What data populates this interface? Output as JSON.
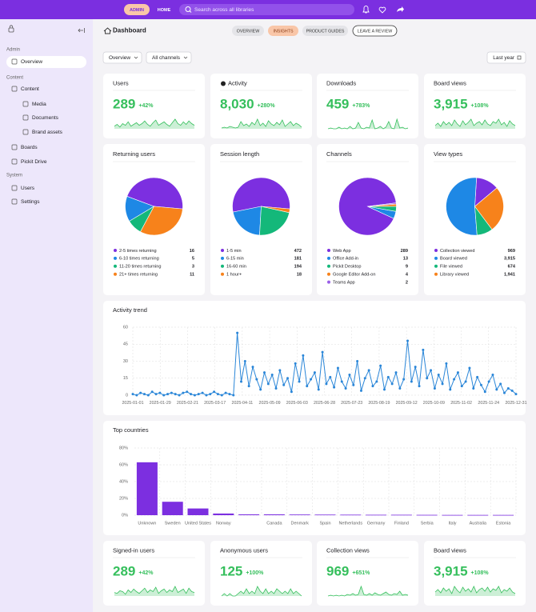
{
  "topbar": {
    "admin": "ADMIN",
    "home": "HOME",
    "search": "Search across all libraries"
  },
  "sidebar": [
    {
      "heading": "Admin",
      "items": [
        "Overview"
      ]
    },
    {
      "heading": "Content",
      "items": [
        "Content",
        "Media",
        "Documents",
        "Brand assets",
        "Boards",
        "Pickit Drive"
      ]
    },
    {
      "heading": "System",
      "items": [
        "Users",
        "Settings"
      ]
    }
  ],
  "header": {
    "title": "Dashboard",
    "tabs": [
      "OVERVIEW",
      "INSIGHTS",
      "PRODUCT GUIDES",
      "LEAVE A REVIEW"
    ]
  },
  "filters": [
    "Overview",
    "All channels"
  ],
  "period": "Last year",
  "stats": [
    {
      "title": "Users",
      "value": 289,
      "change": 42,
      "change_label": "+42%",
      "trend": [
        3,
        5,
        2,
        6,
        4,
        8,
        3,
        5,
        7,
        4,
        6,
        9,
        5,
        3,
        7,
        10,
        4,
        6,
        8,
        5,
        3,
        7,
        11,
        6,
        4,
        8,
        5,
        9,
        6,
        4
      ]
    },
    {
      "title": "Activity",
      "value": 8030,
      "value_label": "8,030",
      "change": 280,
      "change_label": "+280%",
      "trend": [
        1,
        2,
        1,
        3,
        2,
        1,
        2,
        9,
        4,
        6,
        3,
        8,
        5,
        12,
        4,
        7,
        3,
        10,
        6,
        4,
        8,
        5,
        11,
        3,
        6,
        9,
        4,
        7,
        5,
        2
      ]
    },
    {
      "title": "Downloads",
      "value": 459,
      "value_label": "459",
      "change": 783,
      "change_label": "+783%",
      "trend": [
        0,
        1,
        0,
        0,
        2,
        0,
        1,
        0,
        3,
        0,
        1,
        8,
        1,
        0,
        2,
        1,
        11,
        0,
        1,
        3,
        0,
        2,
        9,
        1,
        0,
        12,
        1,
        2,
        0,
        1
      ]
    },
    {
      "title": "Board views",
      "value": 3915,
      "value_label": "3,915",
      "change": 108,
      "change_label": "+108%",
      "trend": [
        4,
        7,
        3,
        9,
        5,
        8,
        4,
        11,
        6,
        3,
        10,
        5,
        8,
        12,
        4,
        7,
        9,
        5,
        11,
        6,
        4,
        9,
        7,
        12,
        5,
        8,
        3,
        10,
        6,
        4
      ]
    },
    {
      "title": "Signed-in users",
      "value": 289,
      "change": 42,
      "change_label": "+42%",
      "trend": [
        4,
        3,
        6,
        5,
        2,
        7,
        4,
        8,
        5,
        3,
        6,
        9,
        4,
        7,
        5,
        10,
        3,
        6,
        8,
        4,
        7,
        5,
        11,
        4,
        6,
        8,
        3,
        9,
        5,
        4
      ]
    },
    {
      "title": "Anonymous users",
      "value": 125,
      "change": 100,
      "change_label": "+100%",
      "trend": [
        0,
        1,
        0,
        1,
        0,
        0,
        1,
        2,
        1,
        3,
        1,
        2,
        1,
        4,
        2,
        1,
        3,
        1,
        2,
        1,
        3,
        2,
        1,
        2,
        1,
        3,
        1,
        2,
        1,
        0
      ]
    },
    {
      "title": "Collection views",
      "value": 969,
      "change": 651,
      "change_label": "+651%",
      "trend": [
        0,
        1,
        0,
        1,
        0,
        1,
        0,
        2,
        1,
        3,
        1,
        2,
        12,
        2,
        1,
        3,
        1,
        4,
        2,
        1,
        3,
        5,
        2,
        1,
        3,
        2,
        6,
        1,
        2,
        1
      ]
    },
    {
      "title": "Board views",
      "value": 3915,
      "value_label": "3,915",
      "change": 108,
      "change_label": "+108%",
      "trend": [
        5,
        8,
        4,
        10,
        6,
        9,
        3,
        12,
        7,
        4,
        11,
        6,
        9,
        5,
        12,
        4,
        8,
        10,
        6,
        11,
        5,
        9,
        7,
        12,
        4,
        8,
        6,
        10,
        5,
        3
      ]
    }
  ],
  "chart_data": [
    {
      "type": "pie",
      "title": "Returning users",
      "categories": [
        "2-5 times returning",
        "6-10 times returning",
        "11-20 times returning",
        "21+ times returning"
      ],
      "values": [
        16,
        5,
        3,
        11
      ],
      "colors": [
        "#7c2fe0",
        "#1e88e5",
        "#14b87a",
        "#f7821b"
      ]
    },
    {
      "type": "pie",
      "title": "Session length",
      "categories": [
        "1-5 min",
        "6-15 min",
        "16-60 min",
        "1 hour+"
      ],
      "values": [
        472,
        181,
        194,
        18
      ],
      "colors": [
        "#7c2fe0",
        "#1e88e5",
        "#14b87a",
        "#f7821b"
      ]
    },
    {
      "type": "pie",
      "title": "Channels",
      "categories": [
        "Web App",
        "Office Add-in",
        "Pickit Desktop",
        "Google Editor Add-on",
        "Teams App"
      ],
      "values": [
        289,
        13,
        9,
        4,
        2
      ],
      "colors": [
        "#7c2fe0",
        "#1e88e5",
        "#14b87a",
        "#f7821b",
        "#9a5fe8"
      ]
    },
    {
      "type": "pie",
      "title": "View types",
      "categories": [
        "Collection viewed",
        "Board viewed",
        "File viewed",
        "Library viewed"
      ],
      "values": [
        969,
        3915,
        674,
        1941
      ],
      "value_labels": [
        "969",
        "3,915",
        "674",
        "1,941"
      ],
      "colors": [
        "#7c2fe0",
        "#1e88e5",
        "#14b87a",
        "#f7821b"
      ]
    },
    {
      "type": "line",
      "title": "Activity trend",
      "color": "#2a86d8",
      "xticks": [
        "2025-01-01",
        "2025-01-29",
        "2025-02-21",
        "2025-03-17",
        "2025-04-11",
        "2025-05-09",
        "2025-06-03",
        "2025-06-28",
        "2025-07-23",
        "2025-08-19",
        "2025-09-12",
        "2025-10-09",
        "2025-11-02",
        "2025-11-24",
        "2025-12-31"
      ],
      "ylim": [
        0,
        60
      ],
      "yticks": [
        0,
        15,
        30,
        45,
        60
      ],
      "grid": true,
      "values": [
        1,
        0,
        2,
        1,
        0,
        3,
        1,
        2,
        0,
        1,
        2,
        1,
        0,
        2,
        3,
        1,
        0,
        1,
        2,
        0,
        1,
        3,
        1,
        0,
        2,
        1,
        0,
        55,
        12,
        30,
        8,
        25,
        14,
        5,
        20,
        10,
        18,
        6,
        22,
        9,
        15,
        3,
        28,
        12,
        35,
        8,
        14,
        20,
        5,
        38,
        10,
        16,
        7,
        24,
        12,
        6,
        18,
        9,
        30,
        4,
        15,
        22,
        8,
        12,
        26,
        5,
        16,
        10,
        20,
        6,
        14,
        48,
        12,
        25,
        8,
        40,
        15,
        22,
        6,
        18,
        10,
        28,
        5,
        14,
        20,
        8,
        12,
        24,
        6,
        16,
        9,
        3,
        12,
        18,
        5,
        10,
        2,
        6,
        4,
        1
      ]
    },
    {
      "type": "bar",
      "title": "Top countries",
      "color": "#7c2fe0",
      "categories": [
        "Unknown",
        "Sweden",
        "United States",
        "Norway",
        null,
        "Canada",
        "Denmark",
        "Spain",
        "Netherlands",
        "Germany",
        "Finland",
        "Serbia",
        "Italy",
        "Australia",
        "Estonia"
      ],
      "values": [
        63,
        16,
        8,
        2,
        1,
        1,
        0.8,
        0.7,
        0.6,
        0.5,
        0.5,
        0.4,
        0.3,
        0.3,
        0.3
      ],
      "ylim": [
        0,
        80
      ],
      "yticks": [
        {
          "value": 0,
          "label": "0%"
        },
        {
          "value": 20,
          "label": "20%"
        },
        {
          "value": 40,
          "label": "40%"
        },
        {
          "value": 60,
          "label": "60%"
        },
        {
          "value": 80,
          "label": "80%"
        }
      ],
      "grid": true
    }
  ]
}
